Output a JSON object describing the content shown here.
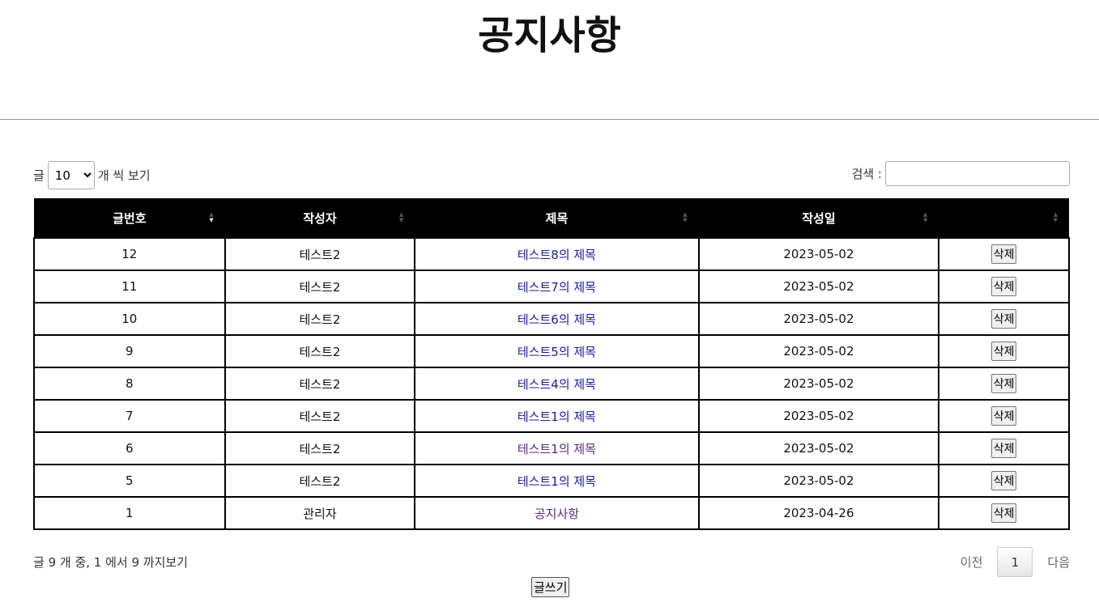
{
  "page": {
    "title": "공지사항"
  },
  "length_control": {
    "prefix": "글",
    "selected": "10",
    "suffix": "개 씩 보기"
  },
  "search": {
    "label": "검색 :",
    "value": ""
  },
  "table": {
    "headers": [
      "글번호",
      "작성자",
      "제목",
      "작성일",
      ""
    ],
    "rows": [
      {
        "no": "12",
        "author": "테스트2",
        "title": "테스트8의 제목",
        "date": "2023-05-02",
        "action": "삭제"
      },
      {
        "no": "11",
        "author": "테스트2",
        "title": "테스트7의 제목",
        "date": "2023-05-02",
        "action": "삭제"
      },
      {
        "no": "10",
        "author": "테스트2",
        "title": "테스트6의 제목",
        "date": "2023-05-02",
        "action": "삭제"
      },
      {
        "no": "9",
        "author": "테스트2",
        "title": "테스트5의 제목",
        "date": "2023-05-02",
        "action": "삭제"
      },
      {
        "no": "8",
        "author": "테스트2",
        "title": "테스트4의 제목",
        "date": "2023-05-02",
        "action": "삭제"
      },
      {
        "no": "7",
        "author": "테스트2",
        "title": "테스트1의 제목",
        "date": "2023-05-02",
        "action": "삭제"
      },
      {
        "no": "6",
        "author": "테스트2",
        "title": "테스트1의 제목",
        "date": "2023-05-02",
        "action": "삭제"
      },
      {
        "no": "5",
        "author": "테스트2",
        "title": "테스트1의 제목",
        "date": "2023-05-02",
        "action": "삭제"
      },
      {
        "no": "1",
        "author": "관리자",
        "title": "공지사항",
        "date": "2023-04-26",
        "action": "삭제"
      }
    ]
  },
  "info": "글 9 개 중, 1 에서 9 까지보기",
  "pagination": {
    "prev": "이전",
    "current": "1",
    "next": "다음"
  },
  "write_button": "글쓰기",
  "colors": {
    "link": "#1a1aa6",
    "visited_link": "#5a2a7a",
    "header_bg": "#000000"
  }
}
